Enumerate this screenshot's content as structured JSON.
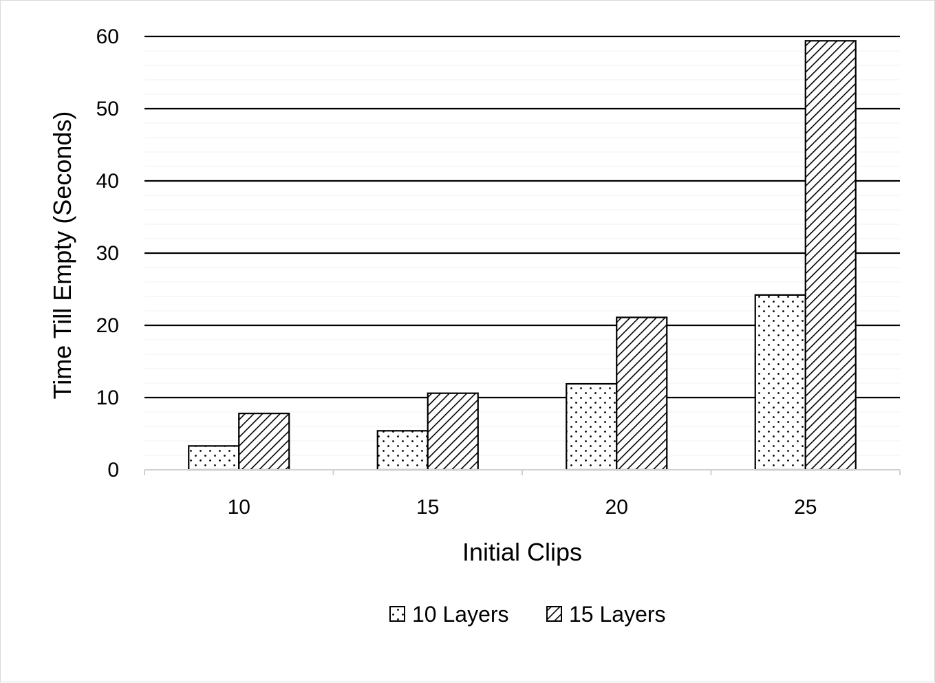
{
  "chart_data": {
    "type": "bar",
    "title": "",
    "xlabel": "Initial Clips",
    "ylabel": "Time Till Empty (Seconds)",
    "categories": [
      "10",
      "15",
      "20",
      "25"
    ],
    "y_ticks": [
      "0",
      "10",
      "20",
      "30",
      "40",
      "50",
      "60"
    ],
    "ylim": [
      0,
      60
    ],
    "grid": true,
    "legend_position": "bottom",
    "series": [
      {
        "name": "10 Layers",
        "values": [
          3.3,
          5.4,
          11.9,
          24.2
        ],
        "pattern": "dots"
      },
      {
        "name": "15 Layers",
        "values": [
          7.8,
          10.6,
          21.1,
          59.4
        ],
        "pattern": "diagonal-hatch"
      }
    ]
  }
}
